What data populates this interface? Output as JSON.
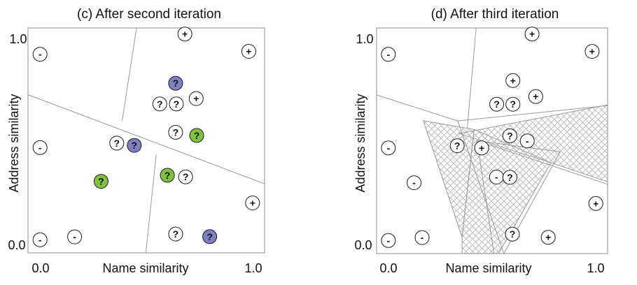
{
  "panels": [
    {
      "title": "(c) After second iteration",
      "xlabel": "Name similarity",
      "ylabel": "Address similarity",
      "x_ticks": [
        "0.0",
        "1.0"
      ],
      "y_ticks": [
        "0.0",
        "1.0"
      ],
      "boundaries": [
        {
          "from": [
            0,
            0.703
          ],
          "to": [
            1,
            0.307
          ]
        },
        {
          "from": [
            0.398,
            0.588
          ],
          "to": [
            0.459,
            1.0
          ]
        },
        {
          "from": [
            0.542,
            0.437
          ],
          "to": [
            0.498,
            0.0
          ]
        }
      ],
      "hatched_regions": [],
      "points": [
        {
          "x": 0.051,
          "y": 0.883,
          "label": "-",
          "kind": "negative"
        },
        {
          "x": 0.051,
          "y": 0.468,
          "label": "-",
          "kind": "negative"
        },
        {
          "x": 0.051,
          "y": 0.058,
          "label": "-",
          "kind": "negative"
        },
        {
          "x": 0.197,
          "y": 0.071,
          "label": "-",
          "kind": "negative"
        },
        {
          "x": 0.663,
          "y": 0.973,
          "label": "+",
          "kind": "positive"
        },
        {
          "x": 0.933,
          "y": 0.896,
          "label": "+",
          "kind": "positive"
        },
        {
          "x": 0.711,
          "y": 0.686,
          "label": "+",
          "kind": "positive"
        },
        {
          "x": 0.949,
          "y": 0.222,
          "label": "+",
          "kind": "positive"
        },
        {
          "x": 0.624,
          "y": 0.754,
          "label": "?",
          "kind": "labeled-match"
        },
        {
          "x": 0.309,
          "y": 0.318,
          "label": "?",
          "kind": "labeled-unmatch"
        },
        {
          "x": 0.449,
          "y": 0.478,
          "label": "?",
          "kind": "labeled-match"
        },
        {
          "x": 0.768,
          "y": 0.072,
          "label": "?",
          "kind": "labeled-match"
        },
        {
          "x": 0.713,
          "y": 0.522,
          "label": "?",
          "kind": "labeled-unmatch"
        },
        {
          "x": 0.589,
          "y": 0.345,
          "label": "?",
          "kind": "labeled-unmatch"
        },
        {
          "x": 0.557,
          "y": 0.662,
          "label": "?",
          "kind": "unlabeled"
        },
        {
          "x": 0.627,
          "y": 0.662,
          "label": "?",
          "kind": "unlabeled"
        },
        {
          "x": 0.375,
          "y": 0.488,
          "label": "?",
          "kind": "unlabeled"
        },
        {
          "x": 0.624,
          "y": 0.536,
          "label": "?",
          "kind": "unlabeled"
        },
        {
          "x": 0.666,
          "y": 0.338,
          "label": "?",
          "kind": "unlabeled"
        },
        {
          "x": 0.624,
          "y": 0.084,
          "label": "?",
          "kind": "unlabeled"
        }
      ]
    },
    {
      "title": "(d) After third iteration",
      "xlabel": "Name similarity",
      "ylabel": "Address similarity",
      "x_ticks": [
        "0.0",
        "1.0"
      ],
      "y_ticks": [
        "0.0",
        "1.0"
      ],
      "boundaries": [
        {
          "from": [
            0,
            0.703
          ],
          "to": [
            0.351,
            0.588
          ]
        },
        {
          "from": [
            0.351,
            0.588
          ],
          "to": [
            1,
            0.656
          ]
        },
        {
          "from": [
            0.392,
            0.552
          ],
          "to": [
            0.431,
            1.0
          ]
        },
        {
          "from": [
            0.351,
            0.588
          ],
          "to": [
            0.551,
            0.0
          ]
        },
        {
          "from": [
            0.435,
            0.5
          ],
          "to": [
            0.508,
            0.0
          ]
        },
        {
          "from": [
            0.435,
            0.5
          ],
          "to": [
            0.795,
            0.451
          ]
        },
        {
          "from": [
            0.795,
            0.451
          ],
          "to": [
            0.551,
            0.0
          ]
        },
        {
          "from": [
            0.435,
            0.5
          ],
          "to": [
            1.0,
            0.307
          ]
        }
      ],
      "hatched_regions": [
        [
          [
            0.202,
            0.589
          ],
          [
            0.422,
            0.55
          ],
          [
            0.37,
            0.072
          ]
        ],
        [
          [
            0.356,
            0.532
          ],
          [
            1.0,
            0.659
          ],
          [
            1.0,
            0.318
          ],
          [
            0.755,
            0.403
          ]
        ],
        [
          [
            0.422,
            0.55
          ],
          [
            0.755,
            0.403
          ],
          [
            0.528,
            0.0
          ],
          [
            0.37,
            0.0
          ],
          [
            0.37,
            0.072
          ]
        ]
      ],
      "points": [
        {
          "x": 0.051,
          "y": 0.883,
          "label": "-",
          "kind": "negative"
        },
        {
          "x": 0.051,
          "y": 0.468,
          "label": "-",
          "kind": "negative"
        },
        {
          "x": 0.051,
          "y": 0.058,
          "label": "-",
          "kind": "negative"
        },
        {
          "x": 0.162,
          "y": 0.314,
          "label": "-",
          "kind": "negative"
        },
        {
          "x": 0.197,
          "y": 0.071,
          "label": "-",
          "kind": "negative"
        },
        {
          "x": 0.652,
          "y": 0.499,
          "label": "-",
          "kind": "negative"
        },
        {
          "x": 0.519,
          "y": 0.339,
          "label": "-",
          "kind": "negative"
        },
        {
          "x": 0.673,
          "y": 0.973,
          "label": "+",
          "kind": "positive"
        },
        {
          "x": 0.933,
          "y": 0.896,
          "label": "+",
          "kind": "positive"
        },
        {
          "x": 0.59,
          "y": 0.767,
          "label": "+",
          "kind": "positive"
        },
        {
          "x": 0.689,
          "y": 0.696,
          "label": "+",
          "kind": "positive"
        },
        {
          "x": 0.455,
          "y": 0.468,
          "label": "+",
          "kind": "positive"
        },
        {
          "x": 0.949,
          "y": 0.222,
          "label": "+",
          "kind": "positive"
        },
        {
          "x": 0.743,
          "y": 0.072,
          "label": "+",
          "kind": "positive"
        },
        {
          "x": 0.52,
          "y": 0.662,
          "label": "?",
          "kind": "unlabeled"
        },
        {
          "x": 0.59,
          "y": 0.662,
          "label": "?",
          "kind": "unlabeled"
        },
        {
          "x": 0.577,
          "y": 0.522,
          "label": "?",
          "kind": "unlabeled"
        },
        {
          "x": 0.349,
          "y": 0.478,
          "label": "?",
          "kind": "unlabeled"
        },
        {
          "x": 0.577,
          "y": 0.338,
          "label": "?",
          "kind": "unlabeled"
        },
        {
          "x": 0.588,
          "y": 0.086,
          "label": "?",
          "kind": "unlabeled"
        }
      ]
    }
  ],
  "colors": {
    "match_fill": "#7f7fc4",
    "unmatch_fill": "#7fc242",
    "node_stroke": "#1a1a1a",
    "plain_fill": "#ffffff",
    "boundary": "#9a9a9a",
    "hatch": "#b5b5b5",
    "frame": "#8c8c8c"
  }
}
